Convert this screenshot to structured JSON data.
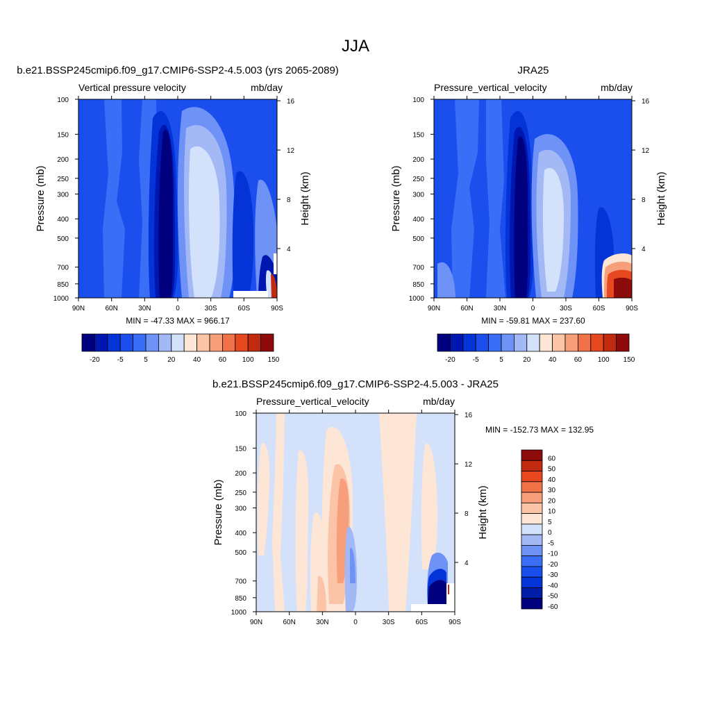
{
  "page": {
    "title": "JJA"
  },
  "colormaps": {
    "abs": [
      "#00007f",
      "#0016b0",
      "#0433d8",
      "#1a4fee",
      "#3a6ef7",
      "#6e92f5",
      "#a3b9f5",
      "#d3e1fb",
      "#fde6d6",
      "#fbc4a7",
      "#f79e7a",
      "#f27248",
      "#e7481f",
      "#c12a0f",
      "#8e0b0b"
    ],
    "abs_ticks": [
      "-20",
      "-5",
      "5",
      "20",
      "40",
      "60",
      "100",
      "150"
    ],
    "diff": [
      "#00007f",
      "#001ea8",
      "#0433d8",
      "#1a4fee",
      "#3a6ef7",
      "#6e92f5",
      "#a3b9f5",
      "#d3e1fb",
      "#fde6d6",
      "#fbc4a7",
      "#f79e7a",
      "#f27248",
      "#e7481f",
      "#c12a0f",
      "#8e0b0b"
    ],
    "diff_ticks": [
      "60",
      "50",
      "40",
      "30",
      "20",
      "10",
      "5",
      "0",
      "-5",
      "-10",
      "-20",
      "-30",
      "-40",
      "-50",
      "-60"
    ]
  },
  "axes": {
    "lat_ticks": [
      "90N",
      "60N",
      "30N",
      "0",
      "30S",
      "60S",
      "90S"
    ],
    "pressure_ticks": [
      "100",
      "150",
      "200",
      "250",
      "300",
      "400",
      "500",
      "700",
      "850",
      "1000"
    ],
    "height_ticks": [
      "16",
      "12",
      "8",
      "4"
    ],
    "ylabel": "Pressure (mb)",
    "y2label": "Height (km)"
  },
  "panels": {
    "model": {
      "title": "b.e21.BSSP245cmip6.f09_g17.CMIP6-SSP2-4.5.003 (yrs 2065-2089)",
      "left_label": "Vertical pressure velocity",
      "right_label": "mb/day",
      "minmax": "MIN = -47.33  MAX = 966.17"
    },
    "obs": {
      "title": "JRA25",
      "left_label": "Pressure_vertical_velocity",
      "right_label": "mb/day",
      "minmax": "MIN = -59.81  MAX = 237.60"
    },
    "diff": {
      "title": "b.e21.BSSP245cmip6.f09_g17.CMIP6-SSP2-4.5.003 - JRA25",
      "left_label": "Pressure_vertical_velocity",
      "right_label": "mb/day",
      "minmax": "MIN = -152.73  MAX = 132.95"
    }
  },
  "chart_data": [
    {
      "type": "heatmap",
      "title": "b.e21.BSSP245cmip6.f09_g17.CMIP6-SSP2-4.5.003 (yrs 2065-2089)",
      "xlabel": "",
      "ylabel": "Pressure (mb)",
      "x_ticks": [
        "90N",
        "60N",
        "30N",
        "0",
        "30S",
        "60S",
        "90S"
      ],
      "y_ticks": [
        100,
        150,
        200,
        250,
        300,
        400,
        500,
        700,
        850,
        1000
      ],
      "y_scale": "log",
      "levels": [
        -20,
        -5,
        5,
        20,
        40,
        60,
        100,
        150
      ],
      "min": -47.33,
      "max": 966.17
    },
    {
      "type": "heatmap",
      "title": "JRA25",
      "ylabel": "Pressure (mb)",
      "x_ticks": [
        "90N",
        "60N",
        "30N",
        "0",
        "30S",
        "60S",
        "90S"
      ],
      "y_ticks": [
        100,
        150,
        200,
        250,
        300,
        400,
        500,
        700,
        850,
        1000
      ],
      "y_scale": "log",
      "min": -59.81,
      "max": 237.6
    },
    {
      "type": "heatmap",
      "title": "b.e21.BSSP245cmip6.f09_g17.CMIP6-SSP2-4.5.003 - JRA25",
      "ylabel": "Pressure (mb)",
      "x_ticks": [
        "90N",
        "60N",
        "30N",
        "0",
        "30S",
        "60S",
        "90S"
      ],
      "y_ticks": [
        100,
        150,
        200,
        250,
        300,
        400,
        500,
        700,
        850,
        1000
      ],
      "y_scale": "log",
      "levels": [
        60,
        50,
        40,
        30,
        20,
        10,
        5,
        0,
        -5,
        -10,
        -20,
        -30,
        -40,
        -50,
        -60
      ],
      "min": -152.73,
      "max": 132.95
    }
  ]
}
